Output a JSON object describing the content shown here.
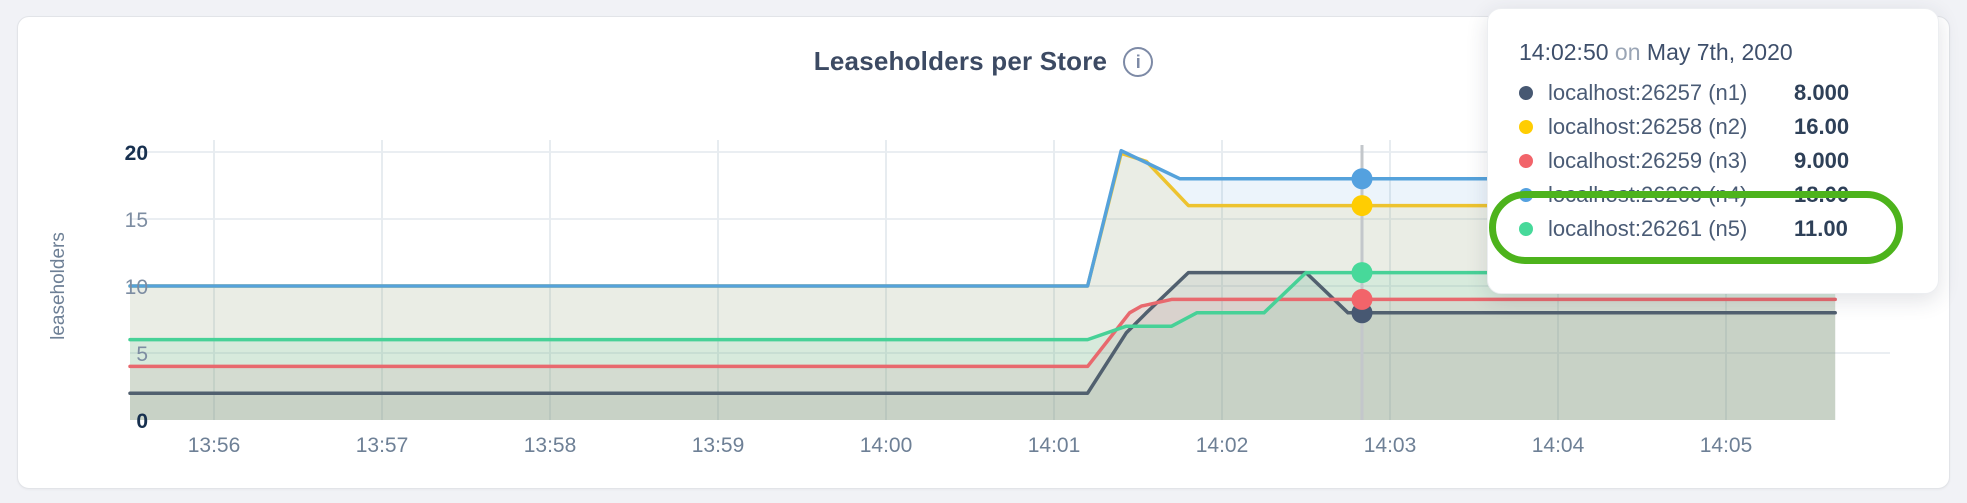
{
  "page": {
    "background": "#f1f2f6"
  },
  "card": {
    "title": "Leaseholders per Store",
    "info_icon_glyph": "i"
  },
  "tooltip": {
    "time": "14:02:50",
    "on_word": "on",
    "date": "May 7th, 2020",
    "highlight_color": "#4db31c",
    "rows": [
      {
        "id": "n1",
        "label": "localhost:26257 (n1)",
        "value": "8.000",
        "dot_color": "#475872",
        "highlighted": false
      },
      {
        "id": "n2",
        "label": "localhost:26258 (n2)",
        "value": "16.00",
        "dot_color": "#ffcd02",
        "highlighted": false
      },
      {
        "id": "n3",
        "label": "localhost:26259 (n3)",
        "value": "9.000",
        "dot_color": "#f2646a",
        "highlighted": false
      },
      {
        "id": "n4",
        "label": "localhost:26260 (n4)",
        "value": "18.00",
        "dot_color": "#54a1df",
        "highlighted": true
      },
      {
        "id": "n5",
        "label": "localhost:26261 (n5)",
        "value": "11.00",
        "dot_color": "#47d99a",
        "highlighted": true
      }
    ]
  },
  "chart_data": {
    "type": "line",
    "title": "Leaseholders per Store",
    "ylabel": "leaseholders",
    "xlabel": "",
    "grid": true,
    "legend_position": "tooltip-only",
    "ylim": [
      0,
      20
    ],
    "y_ticks": [
      0,
      5,
      10,
      15,
      20
    ],
    "y_ticks_emphasized": [
      0,
      20
    ],
    "x_start_time": "13:55:30",
    "x_ticks": [
      "13:56",
      "13:57",
      "13:58",
      "13:59",
      "14:00",
      "14:01",
      "14:02",
      "14:03",
      "14:04",
      "14:05"
    ],
    "x_tick_first_offset_min": 0.5,
    "x_tick_spacing_min": 1,
    "x_data_end_min": 10.15,
    "series": [
      {
        "id": "n1",
        "name": "localhost:26257 (n1)",
        "color": "#51606f",
        "dot_color": "#475872",
        "points": [
          [
            0,
            2
          ],
          [
            5.7,
            2
          ],
          [
            5.93,
            6.5
          ],
          [
            6.05,
            8
          ],
          [
            6.3,
            11
          ],
          [
            7.0,
            11
          ],
          [
            7.25,
            8
          ],
          [
            10.15,
            8
          ]
        ]
      },
      {
        "id": "n2",
        "name": "localhost:26258 (n2)",
        "color": "#edc32f",
        "dot_color": "#ffcd02",
        "points": [
          [
            0,
            10
          ],
          [
            5.7,
            10
          ],
          [
            5.9,
            19.9
          ],
          [
            6.05,
            19.3
          ],
          [
            6.3,
            16
          ],
          [
            10.15,
            16
          ]
        ]
      },
      {
        "id": "n3",
        "name": "localhost:26259 (n3)",
        "color": "#e8696e",
        "dot_color": "#f2646a",
        "points": [
          [
            0,
            4
          ],
          [
            5.7,
            4
          ],
          [
            5.95,
            8
          ],
          [
            6.02,
            8.5
          ],
          [
            6.2,
            9
          ],
          [
            10.15,
            9
          ]
        ]
      },
      {
        "id": "n4",
        "name": "localhost:26260 (n4)",
        "color": "#55a2db",
        "dot_color": "#54a1df",
        "points": [
          [
            0,
            10
          ],
          [
            5.7,
            10
          ],
          [
            5.9,
            20.1
          ],
          [
            6.25,
            18
          ],
          [
            10.15,
            18
          ]
        ]
      },
      {
        "id": "n5",
        "name": "localhost:26261 (n5)",
        "color": "#47d197",
        "dot_color": "#47d99a",
        "points": [
          [
            0,
            6
          ],
          [
            5.7,
            6
          ],
          [
            5.93,
            7
          ],
          [
            6.2,
            7
          ],
          [
            6.35,
            8
          ],
          [
            6.75,
            8
          ],
          [
            7.0,
            11
          ],
          [
            10.15,
            11
          ]
        ]
      }
    ],
    "hover": {
      "time_label": "14:02:50",
      "t_min": 7.3333,
      "values": {
        "n1": 8,
        "n2": 16,
        "n3": 9,
        "n4": 18,
        "n5": 11
      }
    }
  }
}
